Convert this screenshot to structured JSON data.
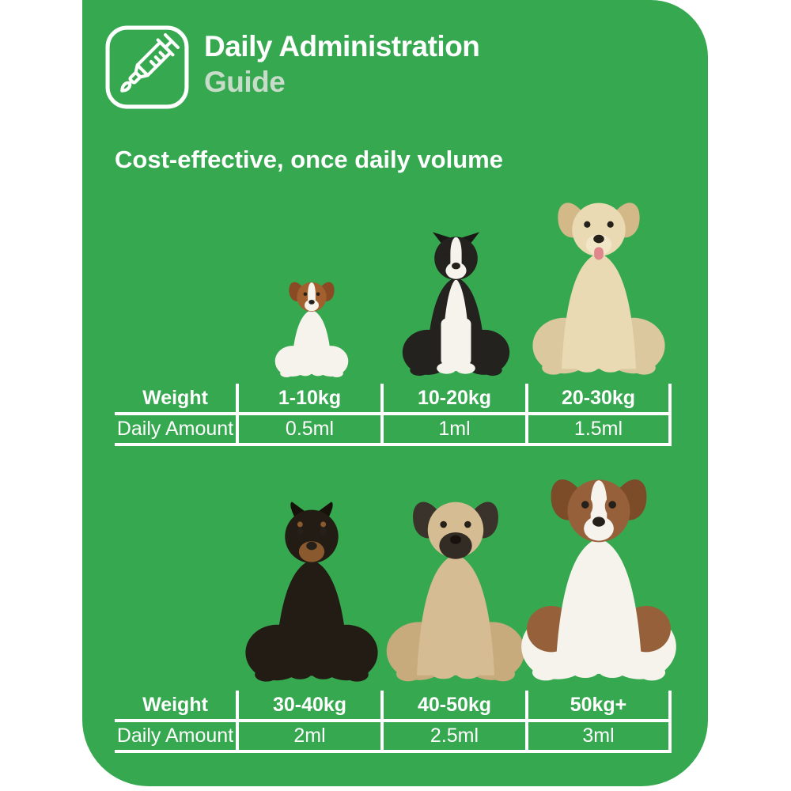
{
  "theme": {
    "card_green": "#36a850",
    "accent_light_green": "#c7dcc9",
    "text_white": "#ffffff",
    "table_line_white": "#ffffff"
  },
  "header": {
    "icon": "syringe-icon",
    "title_line1": "Daily Administration",
    "title_line2": "Guide"
  },
  "subtitle": "Cost-effective, once daily volume",
  "sections": [
    {
      "dogs": [
        "jack-russell-terrier",
        "border-collie",
        "labrador-retriever"
      ],
      "table": {
        "row1_label": "Weight",
        "row2_label": "Daily Amount",
        "columns": [
          {
            "weight": "1-10kg",
            "amount": "0.5ml"
          },
          {
            "weight": "10-20kg",
            "amount": "1ml"
          },
          {
            "weight": "20-30kg",
            "amount": "1.5ml"
          }
        ]
      }
    },
    {
      "dogs": [
        "doberman",
        "english-mastiff",
        "saint-bernard"
      ],
      "table": {
        "row1_label": "Weight",
        "row2_label": "Daily Amount",
        "columns": [
          {
            "weight": "30-40kg",
            "amount": "2ml"
          },
          {
            "weight": "40-50kg",
            "amount": "2.5ml"
          },
          {
            "weight": "50kg+",
            "amount": "3ml"
          }
        ]
      }
    }
  ]
}
